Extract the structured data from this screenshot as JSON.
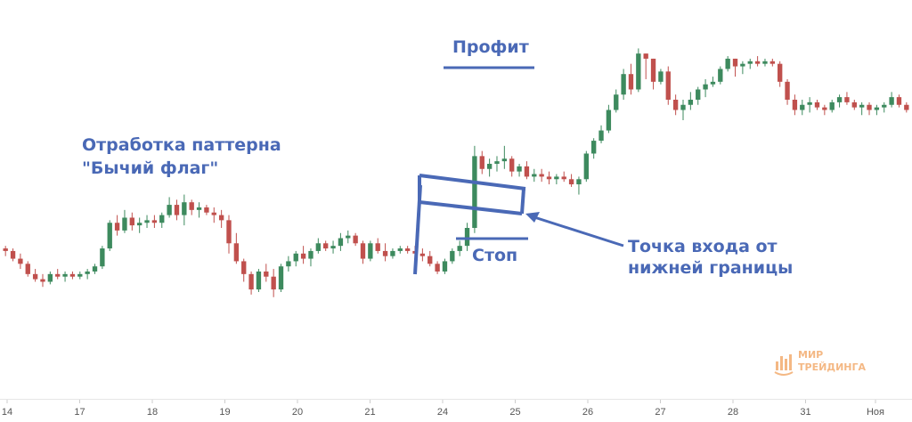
{
  "annotations": {
    "pattern_title_line1": "Отработка паттерна",
    "pattern_title_line2": "\"Бычий флаг\"",
    "profit": "Профит",
    "stop": "Стоп",
    "entry_line1": "Точка входа от",
    "entry_line2": "нижней границы"
  },
  "logo": {
    "line1": "МИР",
    "line2": "ТРЕЙДИНГА",
    "color": "#f4b884"
  },
  "colors": {
    "up": "#3d8a5e",
    "down": "#c0504d",
    "annotation": "#4a69b6",
    "axis_text": "#555555"
  },
  "chart_data": {
    "type": "candlestick",
    "x_ticks": [
      "14",
      "17",
      "18",
      "19",
      "20",
      "21",
      "24",
      "25",
      "26",
      "27",
      "28",
      "31",
      "Ноя"
    ],
    "ylim": [
      0,
      100
    ],
    "grid": false,
    "series": [
      {
        "values": [
          [
            32,
            33,
            29,
            31
          ],
          [
            31,
            32,
            27,
            28
          ],
          [
            28,
            30,
            24,
            26
          ],
          [
            26,
            27,
            21,
            22
          ],
          [
            22,
            24,
            19,
            20
          ],
          [
            20,
            22,
            17,
            19
          ],
          [
            19,
            23,
            18,
            22
          ],
          [
            22,
            24,
            20,
            21
          ],
          [
            21,
            23,
            19,
            22
          ],
          [
            22,
            23,
            20,
            21
          ],
          [
            21,
            23,
            20,
            22
          ],
          [
            22,
            24,
            20,
            23
          ],
          [
            23,
            26,
            22,
            25
          ],
          [
            25,
            33,
            24,
            32
          ],
          [
            32,
            43,
            31,
            42
          ],
          [
            42,
            45,
            37,
            39
          ],
          [
            39,
            47,
            38,
            44
          ],
          [
            44,
            46,
            39,
            41
          ],
          [
            41,
            44,
            38,
            42
          ],
          [
            42,
            45,
            40,
            43
          ],
          [
            43,
            45,
            40,
            42
          ],
          [
            42,
            46,
            40,
            45
          ],
          [
            45,
            52,
            44,
            49
          ],
          [
            49,
            51,
            43,
            45
          ],
          [
            45,
            53,
            41,
            50
          ],
          [
            50,
            51,
            45,
            47
          ],
          [
            47,
            50,
            44,
            48
          ],
          [
            48,
            49,
            45,
            46
          ],
          [
            46,
            48,
            42,
            45
          ],
          [
            45,
            47,
            40,
            43
          ],
          [
            43,
            45,
            30,
            34
          ],
          [
            34,
            38,
            26,
            27
          ],
          [
            27,
            28,
            19,
            22
          ],
          [
            22,
            23,
            14,
            16
          ],
          [
            16,
            24,
            15,
            23
          ],
          [
            23,
            26,
            19,
            21
          ],
          [
            21,
            24,
            13,
            16
          ],
          [
            16,
            26,
            15,
            25
          ],
          [
            25,
            29,
            23,
            27
          ],
          [
            27,
            31,
            25,
            30
          ],
          [
            30,
            33,
            26,
            28
          ],
          [
            28,
            32,
            25,
            31
          ],
          [
            31,
            36,
            30,
            34
          ],
          [
            34,
            35,
            31,
            32
          ],
          [
            32,
            35,
            30,
            33
          ],
          [
            33,
            38,
            31,
            36
          ],
          [
            36,
            39,
            34,
            37
          ],
          [
            37,
            38,
            33,
            34
          ],
          [
            34,
            35,
            26,
            28
          ],
          [
            28,
            35,
            27,
            34
          ],
          [
            34,
            36,
            30,
            31
          ],
          [
            31,
            34,
            27,
            29
          ],
          [
            29,
            32,
            28,
            31
          ],
          [
            31,
            33,
            30,
            32
          ],
          [
            32,
            33,
            30,
            31
          ],
          [
            31,
            33,
            29,
            30
          ],
          [
            30,
            32,
            27,
            29
          ],
          [
            29,
            31,
            25,
            26
          ],
          [
            26,
            27,
            22,
            23
          ],
          [
            23,
            28,
            22,
            27
          ],
          [
            27,
            32,
            26,
            31
          ],
          [
            31,
            35,
            29,
            33
          ],
          [
            33,
            42,
            31,
            40
          ],
          [
            40,
            72,
            38,
            68
          ],
          [
            68,
            70,
            61,
            63
          ],
          [
            63,
            67,
            60,
            65
          ],
          [
            65,
            68,
            62,
            66
          ],
          [
            66,
            72,
            63,
            67
          ],
          [
            67,
            68,
            60,
            62
          ],
          [
            62,
            65,
            60,
            64
          ],
          [
            64,
            66,
            59,
            60
          ],
          [
            60,
            63,
            58,
            61
          ],
          [
            61,
            63,
            58,
            60
          ],
          [
            60,
            62,
            57,
            59
          ],
          [
            59,
            61,
            57,
            60
          ],
          [
            60,
            62,
            58,
            59
          ],
          [
            59,
            61,
            56,
            57
          ],
          [
            57,
            60,
            53,
            59
          ],
          [
            59,
            70,
            58,
            69
          ],
          [
            69,
            75,
            67,
            74
          ],
          [
            74,
            80,
            73,
            78
          ],
          [
            78,
            88,
            77,
            86
          ],
          [
            86,
            94,
            85,
            92
          ],
          [
            92,
            102,
            90,
            100
          ],
          [
            100,
            104,
            92,
            94
          ],
          [
            94,
            110,
            93,
            108
          ],
          [
            108,
            107,
            98,
            106
          ],
          [
            106,
            99,
            94,
            97
          ],
          [
            97,
            102,
            96,
            101
          ],
          [
            101,
            103,
            88,
            90
          ],
          [
            90,
            92,
            84,
            86
          ],
          [
            86,
            90,
            82,
            88
          ],
          [
            88,
            93,
            86,
            90
          ],
          [
            90,
            95,
            88,
            94
          ],
          [
            94,
            98,
            91,
            96
          ],
          [
            96,
            99,
            95,
            97
          ],
          [
            97,
            103,
            96,
            102
          ],
          [
            102,
            107,
            101,
            106
          ],
          [
            106,
            105,
            99,
            103
          ],
          [
            103,
            105,
            100,
            104
          ],
          [
            104,
            106,
            102,
            105
          ],
          [
            105,
            107,
            103,
            104
          ],
          [
            104,
            106,
            103,
            105
          ],
          [
            105,
            106,
            103,
            104
          ],
          [
            104,
            105,
            95,
            97
          ],
          [
            97,
            98,
            88,
            90
          ],
          [
            90,
            92,
            84,
            86
          ],
          [
            86,
            90,
            84,
            88
          ],
          [
            88,
            91,
            85,
            89
          ],
          [
            89,
            90,
            86,
            87
          ],
          [
            87,
            88,
            84,
            86
          ],
          [
            86,
            90,
            85,
            89
          ],
          [
            89,
            92,
            87,
            91
          ],
          [
            91,
            93,
            88,
            89
          ],
          [
            89,
            90,
            86,
            87
          ],
          [
            87,
            89,
            84,
            88
          ],
          [
            88,
            89,
            84,
            86
          ],
          [
            86,
            88,
            84,
            87
          ],
          [
            87,
            89,
            85,
            88
          ],
          [
            88,
            93,
            87,
            91
          ],
          [
            91,
            92,
            87,
            88
          ],
          [
            88,
            89,
            85,
            86
          ]
        ]
      }
    ]
  }
}
